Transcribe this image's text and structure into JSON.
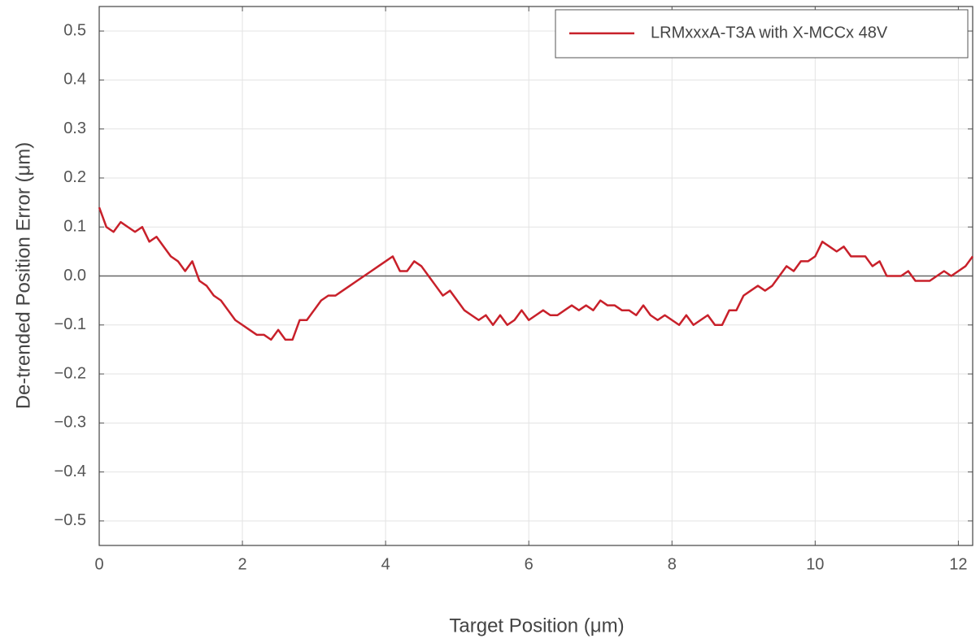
{
  "chart_data": {
    "type": "line",
    "xlabel": "Target Position (μm)",
    "ylabel": "De-trended Position Error (μm)",
    "xlim": [
      0,
      12.2
    ],
    "ylim": [
      -0.55,
      0.55
    ],
    "xticks": [
      0,
      2,
      4,
      6,
      8,
      10,
      12
    ],
    "yticks": [
      {
        "value": -0.5,
        "label": "−0.5"
      },
      {
        "value": -0.4,
        "label": "−0.4"
      },
      {
        "value": -0.3,
        "label": "−0.3"
      },
      {
        "value": -0.2,
        "label": "−0.2"
      },
      {
        "value": -0.1,
        "label": "−0.1"
      },
      {
        "value": 0,
        "label": "0.0"
      },
      0.1,
      0.2,
      0.3,
      0.4,
      0.5
    ],
    "grid": true,
    "zero_line": true,
    "legend": "upper right",
    "x": [
      0,
      0.1,
      0.2,
      0.3,
      0.4,
      0.5,
      0.6,
      0.7,
      0.8,
      0.9,
      1,
      1.1,
      1.2,
      1.3,
      1.4,
      1.5,
      1.6,
      1.7,
      1.8,
      1.9,
      2,
      2.1,
      2.2,
      2.3,
      2.4,
      2.5,
      2.6,
      2.7,
      2.8,
      2.9,
      3,
      3.1,
      3.2,
      3.3,
      3.4,
      3.5,
      3.6,
      3.7,
      3.8,
      3.9,
      4,
      4.1,
      4.2,
      4.3,
      4.4,
      4.5,
      4.6,
      4.7,
      4.8,
      4.9,
      5,
      5.1,
      5.2,
      5.3,
      5.4,
      5.5,
      5.6,
      5.7,
      5.8,
      5.9,
      6,
      6.1,
      6.2,
      6.3,
      6.4,
      6.5,
      6.6,
      6.7,
      6.8,
      6.9,
      7,
      7.1,
      7.2,
      7.3,
      7.4,
      7.5,
      7.6,
      7.7,
      7.8,
      7.9,
      8,
      8.1,
      8.2,
      8.3,
      8.4,
      8.5,
      8.6,
      8.7,
      8.8,
      8.9,
      9,
      9.1,
      9.2,
      9.3,
      9.4,
      9.5,
      9.6,
      9.7,
      9.8,
      9.9,
      10,
      10.1,
      10.2,
      10.3,
      10.4,
      10.5,
      10.6,
      10.7,
      10.8,
      10.9,
      11,
      11.1,
      11.2,
      11.3,
      11.4,
      11.5,
      11.6,
      11.7,
      11.8,
      11.9,
      12,
      12.1,
      12.2
    ],
    "series": [
      {
        "name": "LRMxxxA-T3A with X-MCCx 48V",
        "color": "#c8202a",
        "values": [
          0.14,
          0.1,
          0.09,
          0.11,
          0.1,
          0.09,
          0.1,
          0.07,
          0.08,
          0.06,
          0.04,
          0.03,
          0.01,
          0.03,
          -0.01,
          -0.02,
          -0.04,
          -0.05,
          -0.07,
          -0.09,
          -0.1,
          -0.11,
          -0.12,
          -0.12,
          -0.13,
          -0.11,
          -0.13,
          -0.13,
          -0.09,
          -0.09,
          -0.07,
          -0.05,
          -0.04,
          -0.04,
          -0.03,
          -0.02,
          -0.01,
          0.0,
          0.01,
          0.02,
          0.03,
          0.04,
          0.01,
          0.01,
          0.03,
          0.02,
          0.0,
          -0.02,
          -0.04,
          -0.03,
          -0.05,
          -0.07,
          -0.08,
          -0.09,
          -0.08,
          -0.1,
          -0.08,
          -0.1,
          -0.09,
          -0.07,
          -0.09,
          -0.08,
          -0.07,
          -0.08,
          -0.08,
          -0.07,
          -0.06,
          -0.07,
          -0.06,
          -0.07,
          -0.05,
          -0.06,
          -0.06,
          -0.07,
          -0.07,
          -0.08,
          -0.06,
          -0.08,
          -0.09,
          -0.08,
          -0.09,
          -0.1,
          -0.08,
          -0.1,
          -0.09,
          -0.08,
          -0.1,
          -0.1,
          -0.07,
          -0.07,
          -0.04,
          -0.03,
          -0.02,
          -0.03,
          -0.02,
          0.0,
          0.02,
          0.01,
          0.03,
          0.03,
          0.04,
          0.07,
          0.06,
          0.05,
          0.06,
          0.04,
          0.04,
          0.04,
          0.02,
          0.03,
          0.0,
          0.0,
          0.0,
          0.01,
          -0.01,
          -0.01,
          -0.01,
          0.0,
          0.01,
          0.0,
          0.01,
          0.02,
          0.04
        ]
      }
    ]
  }
}
